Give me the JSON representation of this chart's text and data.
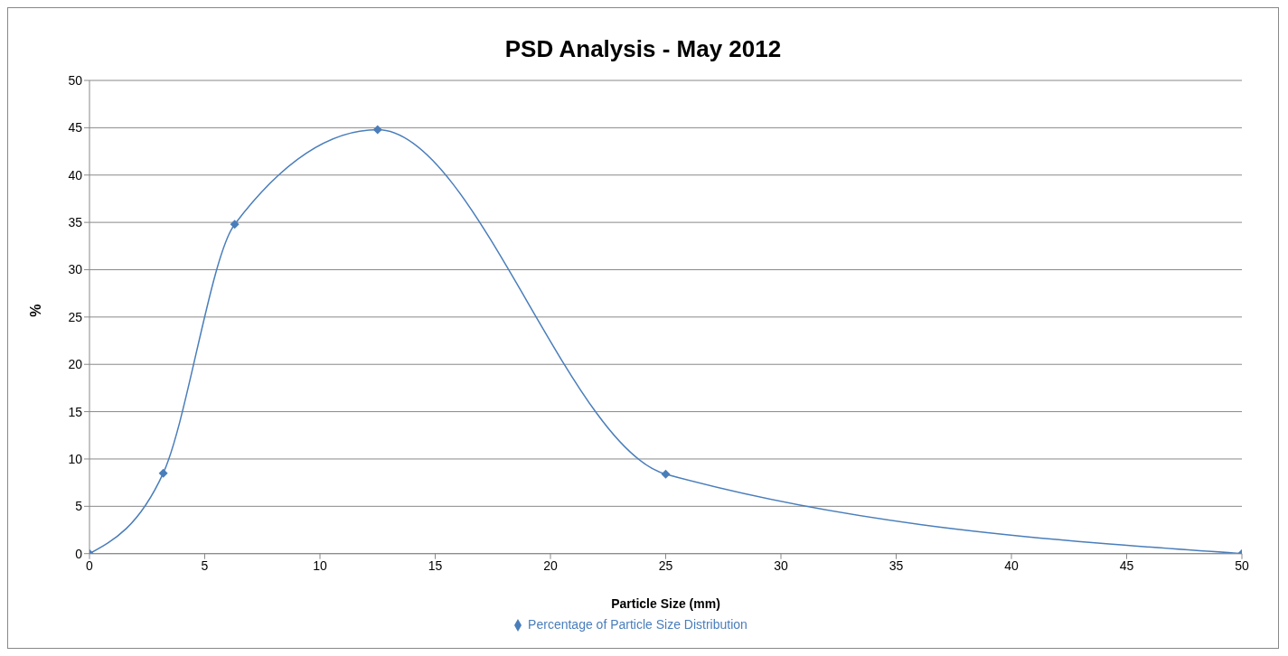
{
  "chart_data": {
    "type": "line",
    "title": "PSD Analysis - May 2012",
    "xlabel": "Particle Size (mm)",
    "ylabel": "%",
    "x": [
      0,
      3.2,
      6.3,
      12.5,
      25,
      50
    ],
    "series": [
      {
        "name": "Percentage of Particle Size Distribution",
        "color": "#4a7ebb",
        "values": [
          0,
          8.5,
          34.8,
          44.8,
          8.4,
          0
        ]
      }
    ],
    "xlim": [
      0,
      50
    ],
    "xticks": [
      0,
      5,
      10,
      15,
      20,
      25,
      30,
      35,
      40,
      45,
      50
    ],
    "ylim": [
      0,
      50
    ],
    "yticks": [
      0,
      5,
      10,
      15,
      20,
      25,
      30,
      35,
      40,
      45,
      50
    ],
    "grid": "y",
    "legend": "bottom",
    "marker": "diamond",
    "line_style": "solid"
  }
}
